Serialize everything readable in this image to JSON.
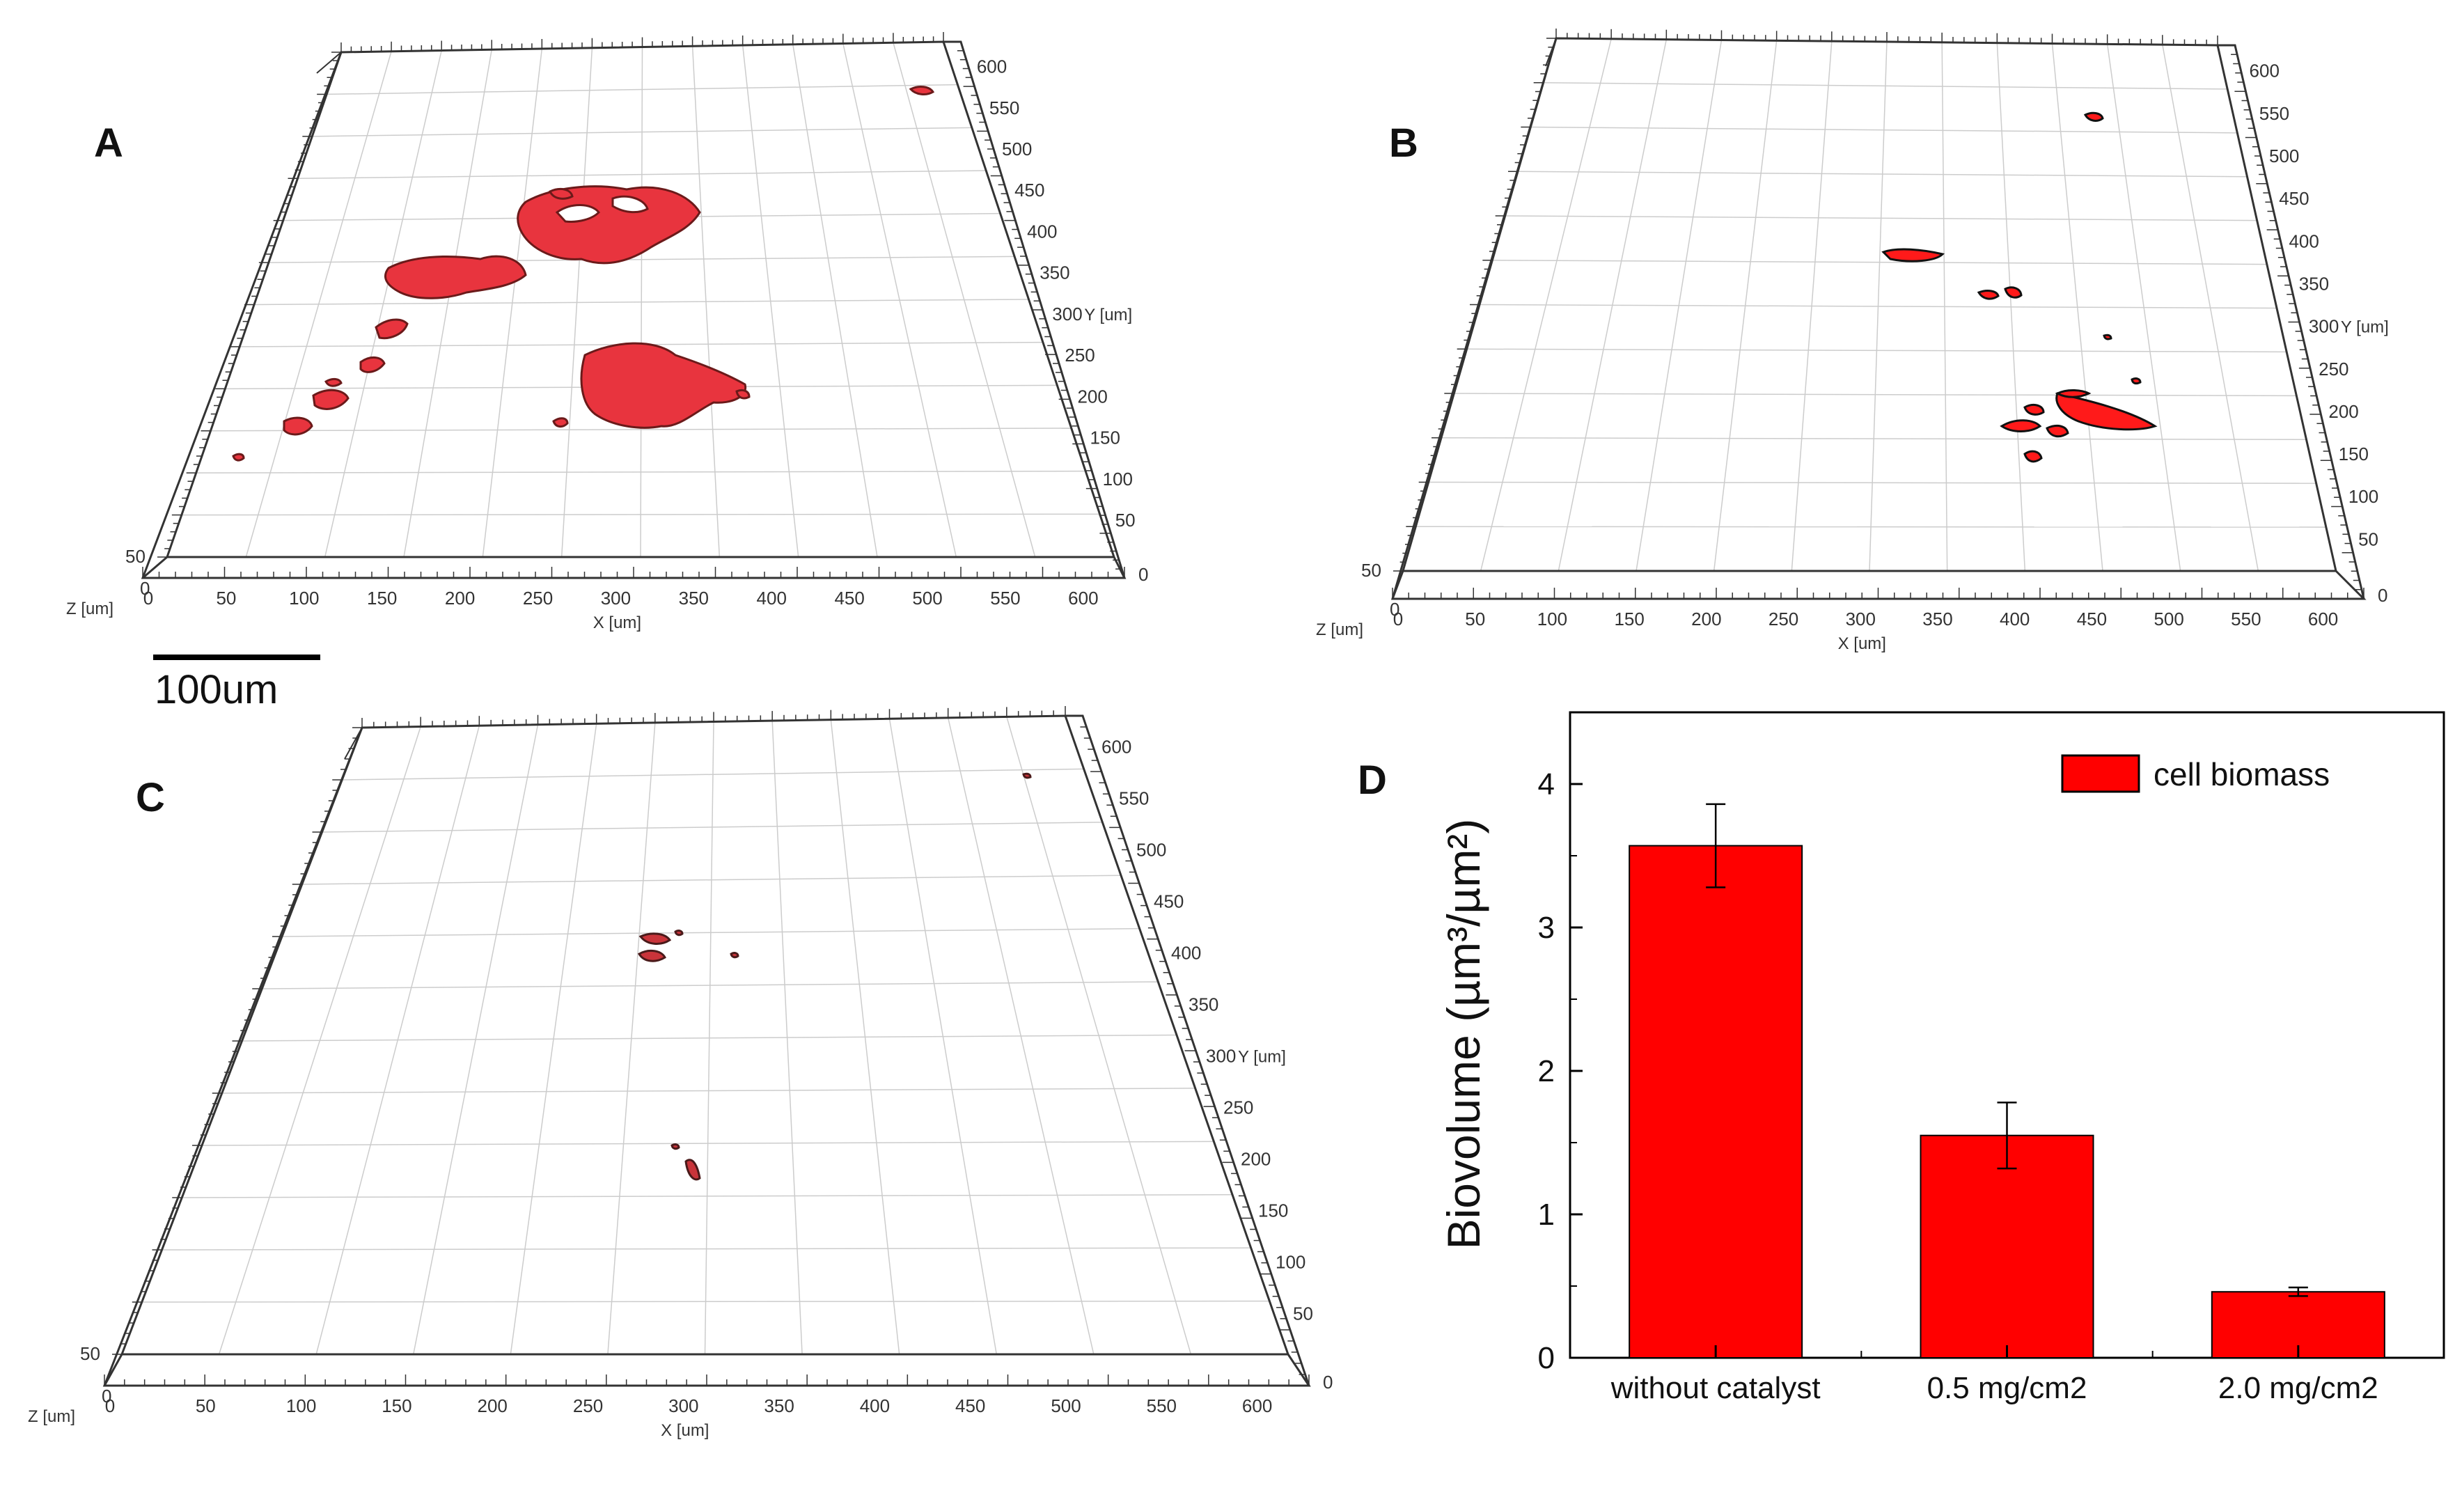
{
  "panels": {
    "A": {
      "letter": "A",
      "x_ticks": [
        "0",
        "50",
        "100",
        "150",
        "200",
        "250",
        "300",
        "350",
        "400",
        "450",
        "500",
        "550",
        "600"
      ],
      "x_axis_label": "X [um]",
      "y_ticks": [
        "50",
        "100",
        "150",
        "200",
        "250",
        "300",
        "350",
        "400",
        "450",
        "500",
        "550",
        "600"
      ],
      "y_axis_label": "Y [um]",
      "y_zero": "0",
      "z_ticks": [
        "50",
        "0"
      ],
      "z_axis_label": "Z [um]"
    },
    "B": {
      "letter": "B",
      "x_ticks": [
        "0",
        "50",
        "100",
        "150",
        "200",
        "250",
        "300",
        "350",
        "400",
        "450",
        "500",
        "550",
        "600"
      ],
      "x_axis_label": "X [um]",
      "y_ticks": [
        "50",
        "100",
        "150",
        "200",
        "250",
        "300",
        "350",
        "400",
        "450",
        "500",
        "550",
        "600"
      ],
      "y_axis_label": "Y [um]",
      "y_zero": "0",
      "z_ticks": [
        "50",
        "0"
      ],
      "z_axis_label": "Z [um]"
    },
    "C": {
      "letter": "C",
      "x_ticks": [
        "0",
        "50",
        "100",
        "150",
        "200",
        "250",
        "300",
        "350",
        "400",
        "450",
        "500",
        "550",
        "600"
      ],
      "x_axis_label": "X [um]",
      "y_ticks": [
        "50",
        "100",
        "150",
        "200",
        "250",
        "300",
        "350",
        "400",
        "450",
        "500",
        "550",
        "600"
      ],
      "y_axis_label": "Y [um]",
      "y_zero": "0",
      "z_ticks": [
        "50",
        "0"
      ],
      "z_axis_label": "Z [um]"
    }
  },
  "scale_bar": {
    "label": "100um"
  },
  "biomass_color": "#ff0000",
  "chart_data": {
    "type": "bar",
    "panel_letter": "D",
    "categories": [
      "without catalyst",
      "0.5 mg/cm2",
      "2.0 mg/cm2"
    ],
    "series": [
      {
        "name": "cell biomass",
        "values": [
          3.57,
          1.55,
          0.46
        ],
        "errors": [
          0.29,
          0.23,
          0.03
        ],
        "color": "#ff0000"
      }
    ],
    "ylabel": "Biovolume (µm³/µm²)",
    "ylim": [
      0,
      4.5
    ],
    "yticks": [
      0,
      1,
      2,
      3,
      4
    ],
    "legend_position": "top-right",
    "grid": false
  }
}
